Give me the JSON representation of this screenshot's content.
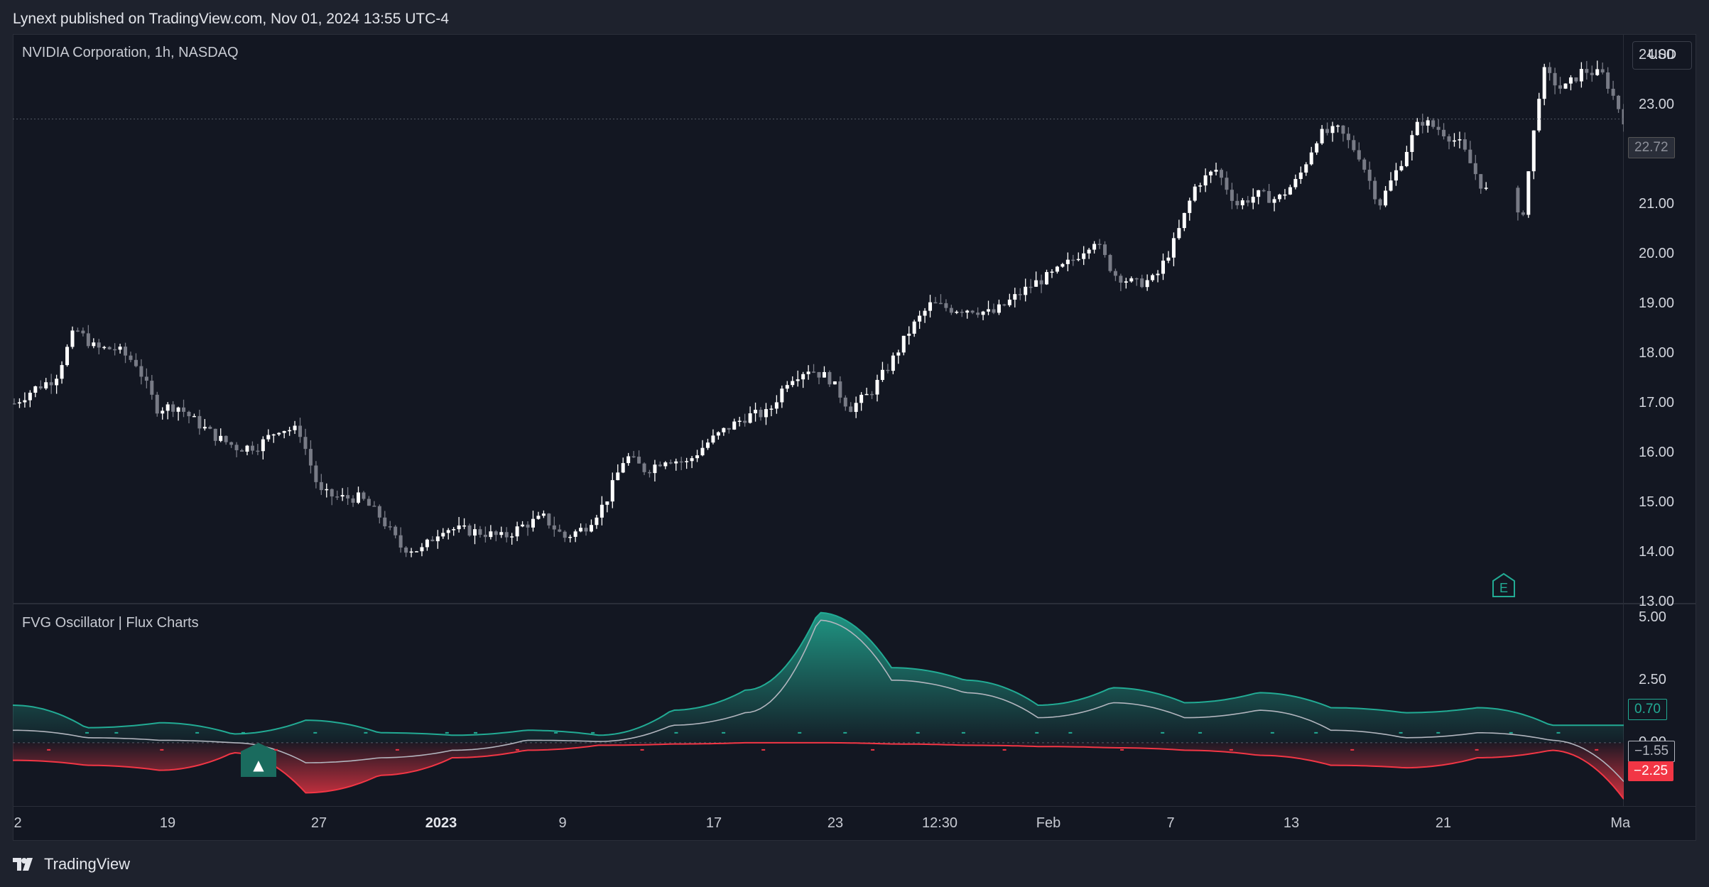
{
  "header": {
    "published_line": "Lynext published on TradingView.com, Nov 01, 2024 13:55 UTC-4"
  },
  "main_pane": {
    "title": "NVIDIA Corporation, 1h, NASDAQ",
    "currency_button": "USD",
    "last_price": "22.72",
    "earnings_marker": "E"
  },
  "oscillator_pane": {
    "title": "FVG Oscillator | Flux Charts",
    "badges": {
      "bull": "0.70",
      "neutral": "−1.55",
      "bear": "−2.25"
    },
    "signal_marker": "▲"
  },
  "price_axis": [
    "24.00",
    "23.00",
    "22.00",
    "21.00",
    "20.00",
    "19.00",
    "18.00",
    "17.00",
    "16.00",
    "15.00",
    "14.00",
    "13.00"
  ],
  "oscillator_axis": [
    "5.00",
    "2.50",
    "0.00"
  ],
  "time_axis": [
    {
      "label": "2",
      "bold": false
    },
    {
      "label": "19",
      "bold": false
    },
    {
      "label": "27",
      "bold": false
    },
    {
      "label": "2023",
      "bold": true
    },
    {
      "label": "9",
      "bold": false
    },
    {
      "label": "17",
      "bold": false
    },
    {
      "label": "23",
      "bold": false
    },
    {
      "label": "12:30",
      "bold": false
    },
    {
      "label": "Feb",
      "bold": false
    },
    {
      "label": "7",
      "bold": false
    },
    {
      "label": "13",
      "bold": false
    },
    {
      "label": "21",
      "bold": false
    },
    {
      "label": "Ma",
      "bold": false
    }
  ],
  "footer": {
    "brand": "TradingView"
  },
  "colors": {
    "background": "#131722",
    "bull": "#22ab94",
    "bear": "#f23645",
    "neutral": "#b2b5be",
    "candle_up": "#ffffff",
    "candle_down": "#787b86"
  },
  "chart_data": [
    {
      "type": "candlestick",
      "title": "NVIDIA Corporation, 1h, NASDAQ",
      "ylim": [
        13,
        24.4
      ],
      "x": [
        "2",
        "19",
        "27",
        "2023",
        "9",
        "17",
        "23",
        "12:30",
        "Feb",
        "7",
        "13",
        "21",
        "Ma"
      ],
      "close_path": [
        17.0,
        17.3,
        17.5,
        18.5,
        18.1,
        18.1,
        17.8,
        16.9,
        16.95,
        16.6,
        16.3,
        16.1,
        16.15,
        16.5,
        16.45,
        15.2,
        15.1,
        15.1,
        14.7,
        14.1,
        14.05,
        14.5,
        14.45,
        14.4,
        14.3,
        14.55,
        14.7,
        14.3,
        14.5,
        15.0,
        15.95,
        15.65,
        15.9,
        15.8,
        16.2,
        16.5,
        16.75,
        16.8,
        17.5,
        17.7,
        17.5,
        16.9,
        17.2,
        17.8,
        18.5,
        19.0,
        18.9,
        18.9,
        18.8,
        19.1,
        19.4,
        19.6,
        19.9,
        20.3,
        19.6,
        19.4,
        19.5,
        20.3,
        21.4,
        21.7,
        21.0,
        21.2,
        21.1,
        21.5,
        22.4,
        22.5,
        22.0,
        21.0,
        21.8,
        22.7,
        22.5,
        22.2,
        21.4,
        20.9,
        20.7,
        23.7,
        23.3,
        23.7,
        23.6,
        22.72
      ]
    },
    {
      "type": "area",
      "title": "FVG Oscillator | Flux Charts",
      "ylim": [
        -2.5,
        5.5
      ],
      "series": [
        {
          "name": "bull",
          "values": [
            1.5,
            0.6,
            0.8,
            0.35,
            0.9,
            0.4,
            0.3,
            0.5,
            0.3,
            1.3,
            2.1,
            5.2,
            3.0,
            2.5,
            1.5,
            2.2,
            1.6,
            2.0,
            1.4,
            1.2,
            1.4,
            0.7,
            0.7
          ]
        },
        {
          "name": "bear",
          "values": [
            -0.7,
            -0.9,
            -1.1,
            -0.4,
            -2.0,
            -1.3,
            -0.6,
            -0.3,
            -0.1,
            -0.05,
            0,
            0,
            -0.05,
            -0.1,
            -0.15,
            -0.2,
            -0.3,
            -0.5,
            -0.9,
            -1.0,
            -0.6,
            -0.3,
            -2.25
          ]
        },
        {
          "name": "neutral",
          "values": [
            0.5,
            0.2,
            0.1,
            0.0,
            -0.8,
            -0.6,
            -0.3,
            0.1,
            0.05,
            0.7,
            1.2,
            4.9,
            2.5,
            2.0,
            1.0,
            1.6,
            1.0,
            1.3,
            0.5,
            0.2,
            0.4,
            0.1,
            -1.55
          ]
        }
      ]
    }
  ]
}
